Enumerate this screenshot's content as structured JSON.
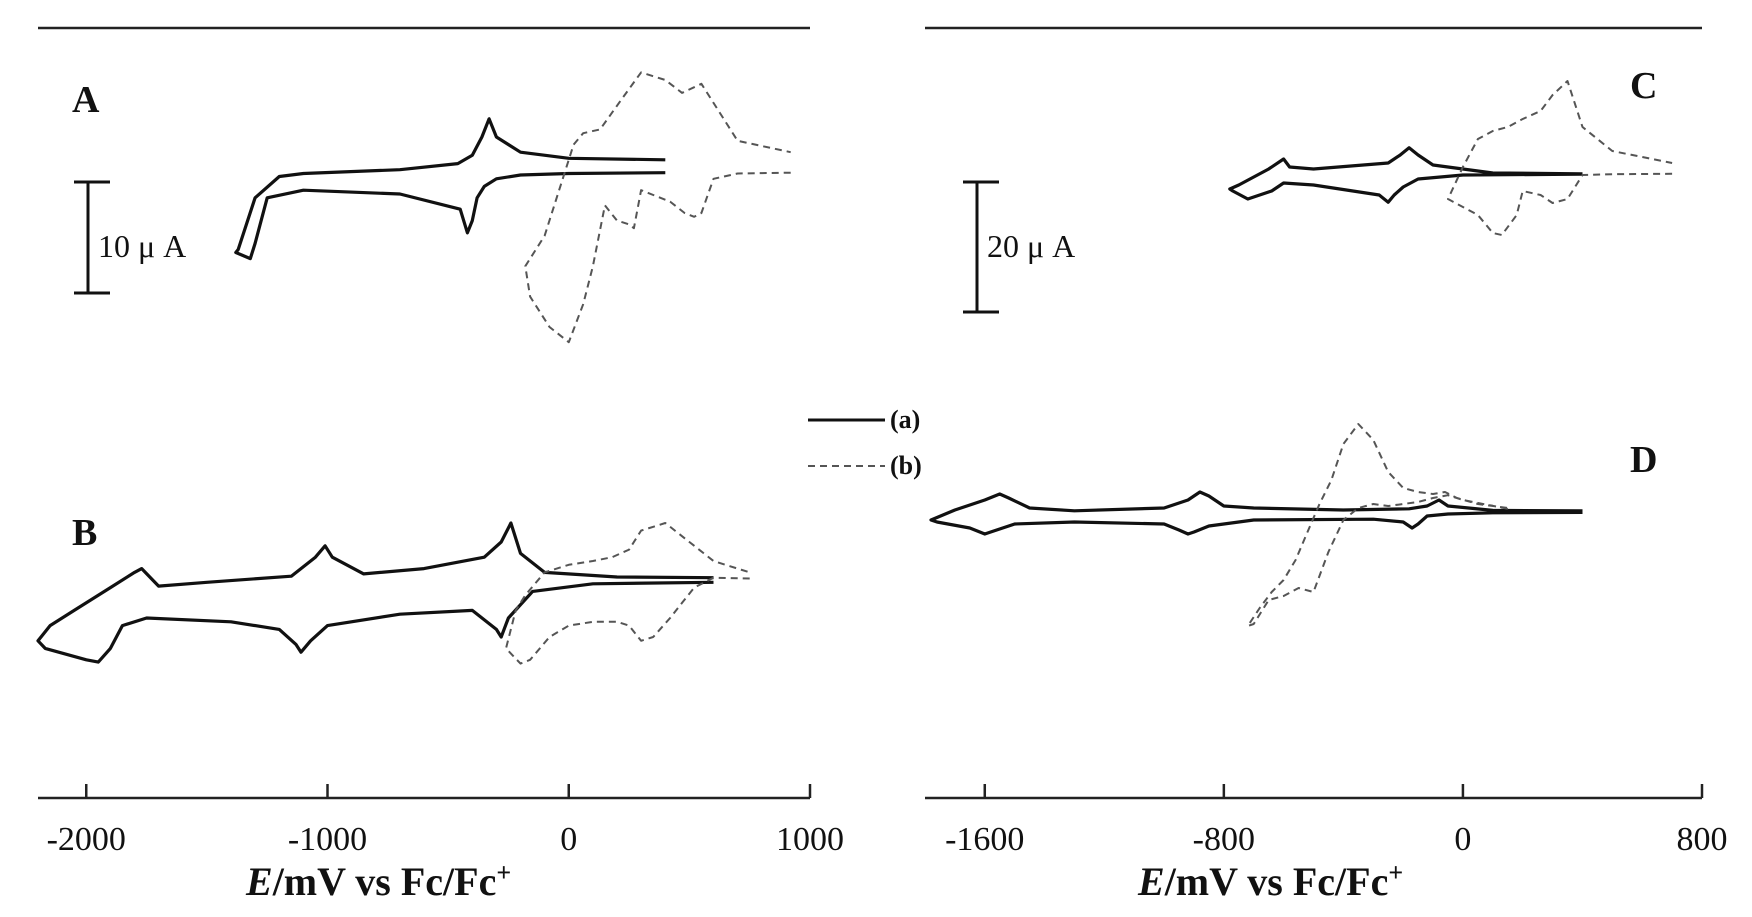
{
  "chart_data": [
    {
      "type": "line",
      "xlabel_italic": "E",
      "xlabel_rest": "/mV vs Fc/Fc",
      "xlabel_sup": "+",
      "xlim": [
        -2200,
        1000
      ],
      "xticks": [
        -2000,
        -1000,
        0,
        1000
      ],
      "xtick_labels": [
        "-2000",
        "-1000",
        "0",
        "1000"
      ],
      "scalebar": {
        "value": 10,
        "label": "10 μ A"
      },
      "legend": [
        {
          "style": "solid",
          "label": "(a)"
        },
        {
          "style": "dashed",
          "label": "(b)"
        }
      ],
      "panels": [
        {
          "label": "A",
          "series": [
            {
              "name": "(a)",
              "style": "solid",
              "current_unit": "μA",
              "x": [
                400,
                0,
                -200,
                -300,
                -330,
                -360,
                -400,
                -460,
                -700,
                -1100,
                -1200,
                -1300,
                -1370,
                -1380,
                -1320,
                -1300,
                -1250,
                -1100,
                -700,
                -450,
                -420,
                -400,
                -380,
                -350,
                -300,
                -200,
                0,
                400
              ],
              "y": [
                2.0,
                2.2,
                3.0,
                5.0,
                7.4,
                5.0,
                2.6,
                1.5,
                0.7,
                0.2,
                -0.2,
                -3.0,
                -9.8,
                -10.2,
                -11.0,
                -9.0,
                -3.0,
                -2.0,
                -2.5,
                -4.5,
                -7.6,
                -6.0,
                -3.0,
                -1.5,
                -0.5,
                0.0,
                0.2,
                0.3
              ]
            },
            {
              "name": "(b)",
              "style": "dashed",
              "current_unit": "μA",
              "x": [
                920,
                700,
                600,
                550,
                520,
                480,
                420,
                380,
                300,
                270,
                250,
                200,
                150,
                100,
                60,
                0,
                -80,
                -160,
                -180,
                -100,
                -40,
                20,
                60,
                130,
                220,
                300,
                400,
                470,
                550,
                700,
                920
              ],
              "y": [
                0.3,
                0.2,
                -0.5,
                -5.0,
                -5.5,
                -5.0,
                -3.5,
                -3.0,
                -2.0,
                -7.0,
                -6.5,
                -6.0,
                -4.0,
                -12.0,
                -17.0,
                -22.0,
                -20.0,
                -16.0,
                -12.0,
                -8.0,
                -2.0,
                4.0,
                5.5,
                6.0,
                10.0,
                13.5,
                12.5,
                10.8,
                12.0,
                4.5,
                3.0
              ]
            }
          ]
        },
        {
          "label": "B",
          "series": [
            {
              "name": "(a)",
              "style": "solid",
              "current_unit": "μA",
              "x": [
                600,
                200,
                -100,
                -200,
                -240,
                -280,
                -350,
                -600,
                -850,
                -980,
                -1010,
                -1050,
                -1150,
                -1500,
                -1700,
                -1770,
                -1800,
                -1900,
                -2050,
                -2150,
                -2200,
                -2170,
                -2000,
                -1950,
                -1900,
                -1850,
                -1750,
                -1400,
                -1200,
                -1130,
                -1110,
                -1070,
                -1000,
                -700,
                -400,
                -300,
                -280,
                -250,
                -150,
                100,
                600
              ],
              "y": [
                0.3,
                0.4,
                1.0,
                3.5,
                7.5,
                5.0,
                3.0,
                1.5,
                0.8,
                3.0,
                4.5,
                3.0,
                0.5,
                -0.3,
                -0.8,
                1.5,
                1.0,
                -1.0,
                -4.0,
                -6.0,
                -8.0,
                -9.0,
                -10.5,
                -10.8,
                -9.0,
                -6.0,
                -5.0,
                -5.5,
                -6.5,
                -8.5,
                -9.5,
                -8.0,
                -6.0,
                -4.5,
                -4.0,
                -6.5,
                -7.5,
                -5.0,
                -1.5,
                -0.5,
                -0.3
              ]
            },
            {
              "name": "(b)",
              "style": "dashed",
              "current_unit": "μA",
              "x": [
                750,
                600,
                520,
                470,
                420,
                350,
                300,
                250,
                200,
                100,
                0,
                -80,
                -160,
                -200,
                -260,
                -220,
                -180,
                -100,
                0,
                100,
                180,
                250,
                300,
                400,
                500,
                600,
                750
              ],
              "y": [
                0.2,
                0.3,
                -1.0,
                -3.0,
                -5.0,
                -7.5,
                -8.0,
                -6.0,
                -5.5,
                -5.5,
                -6.0,
                -7.5,
                -10.5,
                -11.0,
                -9.0,
                -4.0,
                -2.0,
                1.0,
                2.0,
                2.5,
                3.0,
                4.0,
                6.5,
                7.5,
                5.0,
                2.5,
                1.0
              ]
            }
          ]
        }
      ]
    },
    {
      "type": "line",
      "xlabel_italic": "E",
      "xlabel_rest": "/mV vs Fc/Fc",
      "xlabel_sup": "+",
      "xlim": [
        -1800,
        800
      ],
      "xticks": [
        -1600,
        -800,
        0,
        800
      ],
      "xtick_labels": [
        "-1600",
        "-800",
        "0",
        "800"
      ],
      "scalebar": {
        "value": 20,
        "label": "20 μ A"
      },
      "panels": [
        {
          "label": "C",
          "series": [
            {
              "name": "(a)",
              "style": "solid",
              "current_unit": "μA",
              "x": [
                400,
                100,
                -100,
                -150,
                -180,
                -210,
                -250,
                -500,
                -580,
                -600,
                -650,
                -750,
                -780,
                -770,
                -720,
                -640,
                -600,
                -500,
                -280,
                -250,
                -230,
                -200,
                -150,
                0,
                400
              ],
              "y": [
                0.3,
                0.5,
                2.5,
                5.0,
                6.8,
                5.0,
                3.0,
                1.5,
                2.0,
                4.0,
                1.5,
                -2.5,
                -3.5,
                -4.0,
                -6.0,
                -4.0,
                -2.0,
                -2.5,
                -5.0,
                -6.8,
                -5.0,
                -3.0,
                -1.0,
                0.0,
                0.2
              ]
            },
            {
              "name": "(b)",
              "style": "dashed",
              "current_unit": "μA",
              "x": [
                700,
                500,
                400,
                350,
                300,
                260,
                200,
                180,
                130,
                100,
                50,
                0,
                -50,
                0,
                50,
                100,
                150,
                200,
                260,
                300,
                350,
                400,
                500,
                700
              ],
              "y": [
                0.3,
                0.2,
                0.0,
                -6.0,
                -7.0,
                -5.0,
                -4.0,
                -10.0,
                -15.0,
                -14.5,
                -10.0,
                -8.0,
                -6.0,
                2.0,
                9.0,
                11.0,
                12.0,
                14.0,
                16.0,
                20.0,
                23.5,
                12.0,
                6.0,
                3.0
              ]
            }
          ]
        },
        {
          "label": "D",
          "series": [
            {
              "name": "(a)",
              "style": "solid",
              "current_unit": "μA",
              "x": [
                400,
                100,
                -50,
                -80,
                -120,
                -180,
                -400,
                -700,
                -800,
                -850,
                -880,
                -920,
                -1000,
                -1300,
                -1450,
                -1520,
                -1550,
                -1600,
                -1700,
                -1780,
                -1760,
                -1650,
                -1600,
                -1580,
                -1500,
                -1300,
                -1000,
                -950,
                -920,
                -900,
                -850,
                -700,
                -300,
                -200,
                -170,
                -150,
                -120,
                -50,
                100,
                400
              ],
              "y": [
                0.3,
                0.4,
                1.5,
                3.0,
                1.5,
                0.8,
                0.5,
                1.0,
                1.5,
                4.0,
                5.0,
                3.0,
                1.0,
                0.3,
                1.0,
                3.5,
                4.5,
                3.0,
                0.5,
                -2.0,
                -2.5,
                -4.0,
                -5.5,
                -5.0,
                -3.0,
                -2.5,
                -3.0,
                -4.5,
                -5.5,
                -5.0,
                -3.5,
                -2.0,
                -1.8,
                -2.5,
                -4.0,
                -3.0,
                -1.0,
                -0.5,
                -0.2,
                -0.1
              ]
            },
            {
              "name": "(b)",
              "style": "dashed",
              "current_unit": "μA",
              "x": [
                150,
                0,
                -50,
                -100,
                -150,
                -250,
                -300,
                -350,
                -400,
                -450,
                -500,
                -550,
                -600,
                -650,
                -700,
                -720,
                -680,
                -640,
                -600,
                -560,
                -520,
                -480,
                -440,
                -400,
                -350,
                -300,
                -250,
                -200,
                -150,
                -100,
                -60,
                -20,
                50,
                150
              ],
              "y": [
                0.8,
                3.0,
                4.2,
                3.5,
                2.5,
                1.5,
                2.0,
                1.0,
                -2.0,
                -10.0,
                -20.0,
                -19.0,
                -21.0,
                -22.0,
                -28.0,
                -28.5,
                -24.0,
                -20.0,
                -17.0,
                -12.0,
                -5.0,
                2.0,
                8.0,
                17.0,
                22.0,
                18.0,
                10.0,
                6.0,
                5.0,
                4.5,
                5.0,
                3.5,
                2.0,
                1.0
              ]
            }
          ]
        }
      ]
    }
  ]
}
